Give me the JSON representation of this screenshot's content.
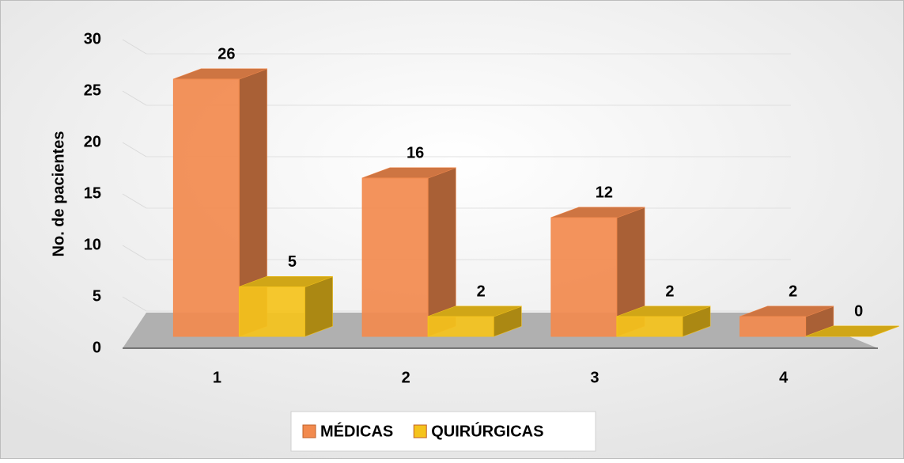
{
  "chart_data": {
    "type": "bar3d",
    "y_label": "No. de pacientes",
    "categories": [
      "1",
      "2",
      "3",
      "4"
    ],
    "series": [
      {
        "name": "MÉDICAS",
        "color": "#f28a4e",
        "values": [
          26,
          16,
          12,
          2
        ]
      },
      {
        "name": "QUIRÚRGICAS",
        "color": "#f5c31c",
        "values": [
          5,
          2,
          2,
          0
        ]
      }
    ],
    "ylim": [
      0,
      30
    ],
    "yticks": [
      0,
      5,
      10,
      15,
      20,
      25,
      30
    ],
    "grid": true,
    "legend": "bottom"
  }
}
